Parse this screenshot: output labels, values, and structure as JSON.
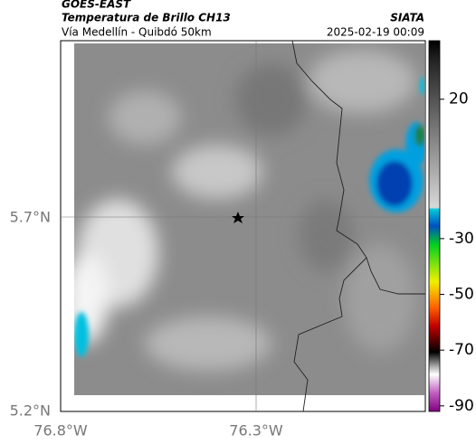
{
  "header": {
    "satellite": "GOES-EAST",
    "product": "Temperatura de Brillo CH13",
    "source": "SIATA",
    "location": "Vía Medellín - Quibdó 50km",
    "datetime": "2025-02-19 00:09"
  },
  "map": {
    "lat_labels": [
      "5.7°N",
      "5.2°N"
    ],
    "lon_labels": [
      "76.8°W",
      "76.3°W"
    ]
  },
  "colorbar": {
    "lim": [
      41,
      -92
    ],
    "ticks": [
      20,
      -30,
      -50,
      -70,
      -90
    ]
  }
}
